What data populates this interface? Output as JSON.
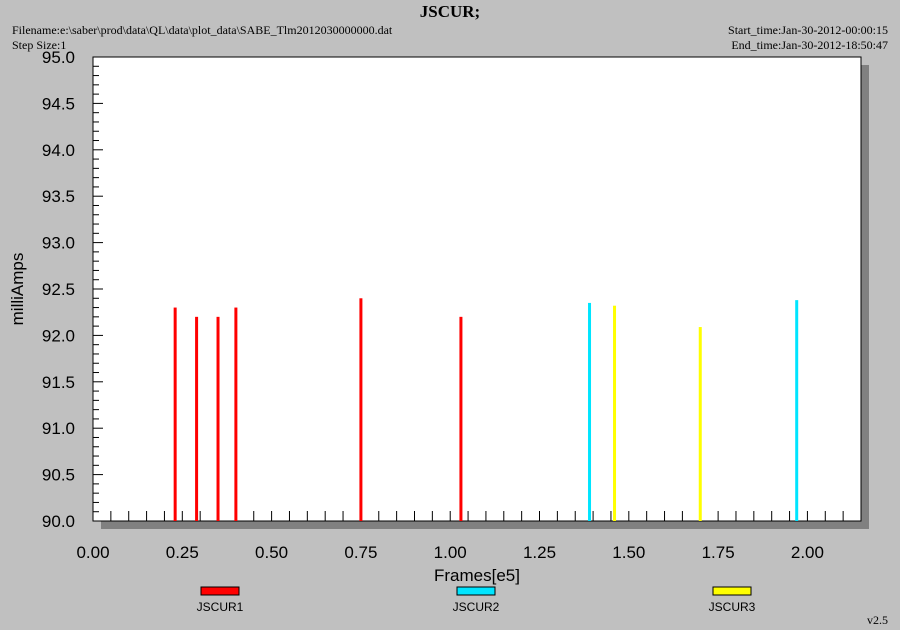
{
  "header": {
    "title": "JSCUR;",
    "filename": "Filename:e:\\saber\\prod\\data\\QL\\data\\plot_data\\SABE_Tlm2012030000000.dat",
    "step_size": "Step Size:1",
    "start_time": "Start_time:Jan-30-2012-00:00:15",
    "end_time": "End_time:Jan-30-2012-18:50:47"
  },
  "version": "v2.5",
  "chart_data": {
    "type": "bar",
    "title": "JSCUR;",
    "xlabel": "Frames[e5]",
    "ylabel": "milliAmps",
    "xlim": [
      0.0,
      2.15
    ],
    "ylim": [
      90.0,
      95.0
    ],
    "xticks": [
      "0.00",
      "0.25",
      "0.50",
      "0.75",
      "1.00",
      "1.25",
      "1.50",
      "1.75",
      "2.00"
    ],
    "yticks": [
      "90.0",
      "90.5",
      "91.0",
      "91.5",
      "92.0",
      "92.5",
      "93.0",
      "93.5",
      "94.0",
      "94.5",
      "95.0"
    ],
    "legend_position": "bottom",
    "series": [
      {
        "name": "JSCUR1",
        "color": "#ff0000",
        "x": [
          0.23,
          0.29,
          0.35,
          0.4,
          0.75,
          1.03
        ],
        "values": [
          92.3,
          92.2,
          92.2,
          92.3,
          92.4,
          92.2
        ]
      },
      {
        "name": "JSCUR2",
        "color": "#00e5ff",
        "x": [
          1.39,
          1.97
        ],
        "values": [
          92.35,
          92.38
        ]
      },
      {
        "name": "JSCUR3",
        "color": "#ffff00",
        "x": [
          1.46,
          1.7
        ],
        "values": [
          92.32,
          92.09
        ]
      }
    ]
  }
}
